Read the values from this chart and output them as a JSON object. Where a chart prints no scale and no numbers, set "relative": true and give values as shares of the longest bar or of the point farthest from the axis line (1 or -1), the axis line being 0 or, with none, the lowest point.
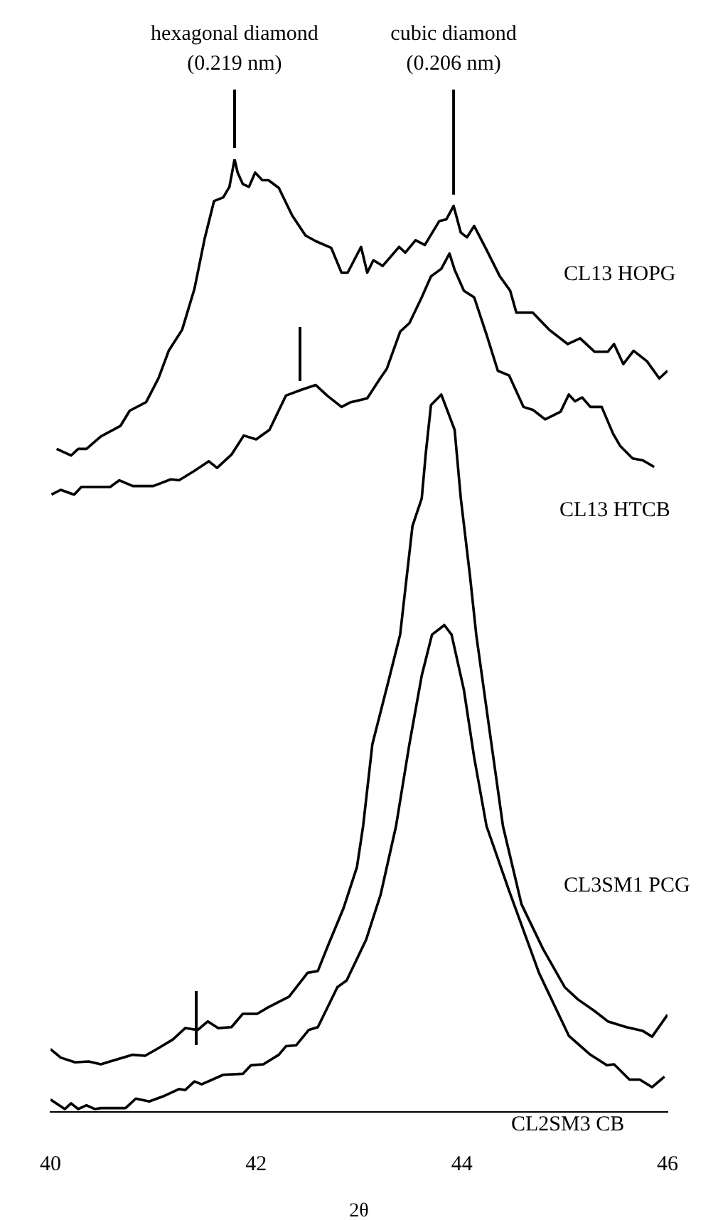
{
  "chart_data": {
    "type": "line",
    "relative": true,
    "xlabel": "2θ",
    "xlim": [
      40,
      46
    ],
    "xticks": [
      40,
      42,
      44,
      46
    ],
    "grid": false,
    "legend": false,
    "tick_labels": "x",
    "marker": "none",
    "line_style": "solid",
    "annotations": [
      {
        "text": "hexagonal diamond\n(0.219 nm)",
        "x": 41.79,
        "y": 1.0
      },
      {
        "text": "cubic diamond\n(0.206 nm)",
        "x": 43.92,
        "y": 0.951
      }
    ],
    "series": [
      {
        "name": "CL13 HOPG",
        "color": "#000000",
        "x": [
          40.06,
          40.2,
          40.27,
          40.35,
          40.49,
          40.68,
          40.77,
          40.93,
          41.05,
          41.15,
          41.28,
          41.4,
          41.5,
          41.59,
          41.68,
          41.74,
          41.79,
          41.82,
          41.87,
          41.93,
          41.99,
          42.06,
          42.12,
          42.22,
          42.35,
          42.48,
          42.58,
          42.73,
          42.83,
          42.89,
          43.02,
          43.08,
          43.14,
          43.23,
          43.39,
          43.45,
          43.55,
          43.64,
          43.78,
          43.85,
          43.92,
          43.99,
          44.05,
          44.12,
          44.24,
          44.37,
          44.47,
          44.53,
          44.69,
          44.85,
          45.03,
          45.15,
          45.29,
          45.42,
          45.48,
          45.57,
          45.67,
          45.8,
          45.92,
          46.0
        ],
        "values": [
          0.696,
          0.689,
          0.696,
          0.696,
          0.709,
          0.72,
          0.736,
          0.745,
          0.77,
          0.799,
          0.821,
          0.864,
          0.917,
          0.956,
          0.96,
          0.971,
          1.0,
          0.986,
          0.974,
          0.971,
          0.986,
          0.978,
          0.978,
          0.97,
          0.941,
          0.92,
          0.914,
          0.907,
          0.881,
          0.881,
          0.908,
          0.881,
          0.894,
          0.888,
          0.908,
          0.902,
          0.915,
          0.91,
          0.935,
          0.937,
          0.951,
          0.923,
          0.918,
          0.93,
          0.905,
          0.877,
          0.862,
          0.839,
          0.839,
          0.821,
          0.806,
          0.812,
          0.798,
          0.798,
          0.806,
          0.785,
          0.799,
          0.788,
          0.77,
          0.778
        ]
      },
      {
        "name": "CL13 HTCB",
        "color": "#000000",
        "x": [
          40.01,
          40.1,
          40.23,
          40.3,
          40.58,
          40.67,
          40.8,
          41.0,
          41.17,
          41.25,
          41.4,
          41.54,
          41.62,
          41.76,
          41.88,
          42.0,
          42.13,
          42.29,
          42.44,
          42.58,
          42.69,
          42.83,
          42.92,
          43.08,
          43.2,
          43.27,
          43.4,
          43.49,
          43.61,
          43.7,
          43.8,
          43.88,
          43.93,
          44.02,
          44.12,
          44.24,
          44.35,
          44.46,
          44.6,
          44.69,
          44.81,
          44.96,
          45.04,
          45.1,
          45.17,
          45.25,
          45.36,
          45.47,
          45.54,
          45.66,
          45.76,
          45.87
        ],
        "values": [
          0.648,
          0.653,
          0.648,
          0.656,
          0.656,
          0.663,
          0.657,
          0.657,
          0.664,
          0.663,
          0.673,
          0.683,
          0.676,
          0.69,
          0.71,
          0.706,
          0.716,
          0.752,
          0.758,
          0.763,
          0.752,
          0.74,
          0.745,
          0.749,
          0.769,
          0.78,
          0.819,
          0.828,
          0.855,
          0.877,
          0.885,
          0.901,
          0.884,
          0.862,
          0.855,
          0.816,
          0.778,
          0.773,
          0.74,
          0.737,
          0.727,
          0.735,
          0.753,
          0.746,
          0.75,
          0.74,
          0.74,
          0.712,
          0.699,
          0.686,
          0.684,
          0.677
        ]
      },
      {
        "name": "CL3SM1 PCG",
        "color": "#000000",
        "x": [
          40.0,
          40.1,
          40.24,
          40.37,
          40.49,
          40.58,
          40.8,
          40.92,
          41.05,
          41.19,
          41.31,
          41.43,
          41.53,
          41.63,
          41.76,
          41.87,
          42.01,
          42.12,
          42.32,
          42.5,
          42.6,
          42.7,
          42.85,
          42.98,
          43.04,
          43.13,
          43.3,
          43.4,
          43.52,
          43.61,
          43.65,
          43.7,
          43.8,
          43.93,
          43.99,
          44.08,
          44.14,
          44.27,
          44.4,
          44.58,
          44.79,
          45.0,
          45.13,
          45.29,
          45.42,
          45.6,
          45.76,
          45.85,
          46.0
        ],
        "values": [
          0.066,
          0.057,
          0.052,
          0.053,
          0.05,
          0.053,
          0.06,
          0.059,
          0.067,
          0.076,
          0.088,
          0.086,
          0.095,
          0.088,
          0.089,
          0.103,
          0.103,
          0.11,
          0.121,
          0.146,
          0.148,
          0.175,
          0.214,
          0.257,
          0.3,
          0.386,
          0.458,
          0.501,
          0.615,
          0.644,
          0.692,
          0.742,
          0.753,
          0.716,
          0.644,
          0.562,
          0.501,
          0.4,
          0.3,
          0.218,
          0.171,
          0.131,
          0.118,
          0.106,
          0.095,
          0.089,
          0.085,
          0.079,
          0.102
        ]
      },
      {
        "name": "CL2SM3 CB",
        "color": "#000000",
        "x": [
          40.0,
          40.14,
          40.2,
          40.27,
          40.35,
          40.43,
          40.49,
          40.73,
          40.83,
          40.96,
          41.11,
          41.25,
          41.31,
          41.4,
          41.47,
          41.68,
          41.87,
          41.95,
          42.07,
          42.22,
          42.29,
          42.39,
          42.51,
          42.6,
          42.79,
          42.88,
          43.07,
          43.21,
          43.36,
          43.49,
          43.61,
          43.71,
          43.83,
          43.9,
          44.02,
          44.12,
          44.24,
          44.46,
          44.75,
          45.04,
          45.25,
          45.41,
          45.48,
          45.63,
          45.73,
          45.85,
          45.97
        ],
        "values": [
          0.013,
          0.003,
          0.009,
          0.003,
          0.007,
          0.003,
          0.004,
          0.004,
          0.014,
          0.011,
          0.017,
          0.024,
          0.023,
          0.032,
          0.029,
          0.039,
          0.04,
          0.049,
          0.05,
          0.06,
          0.069,
          0.07,
          0.086,
          0.089,
          0.131,
          0.138,
          0.181,
          0.228,
          0.3,
          0.386,
          0.458,
          0.501,
          0.511,
          0.501,
          0.443,
          0.372,
          0.3,
          0.232,
          0.146,
          0.08,
          0.06,
          0.049,
          0.05,
          0.034,
          0.034,
          0.026,
          0.037
        ]
      }
    ]
  }
}
